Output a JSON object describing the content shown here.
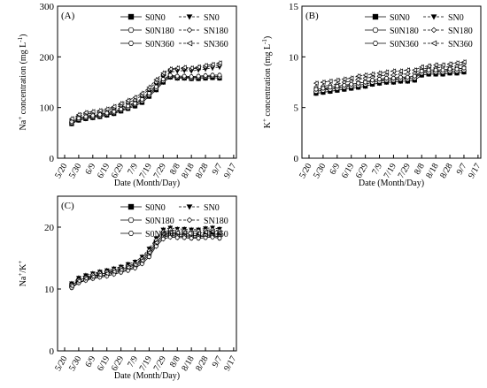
{
  "chart_data": [
    {
      "type": "line",
      "panel_label": "(A)",
      "xlabel": "Date (Month/Day)",
      "ylabel_main": "Na",
      "ylabel_sup": "+",
      "ylabel_rest": " concentration (mg L",
      "ylabel_unit_sup": "-1",
      "ylabel_end": ")",
      "categories": [
        "5/20",
        "5/30",
        "6/9",
        "6/19",
        "6/29",
        "7/9",
        "7/19",
        "7/29",
        "8/8",
        "8/18",
        "8/28",
        "9/7",
        "9/17"
      ],
      "ylim": [
        0,
        300
      ],
      "yticks": [
        "0",
        "100",
        "200",
        "300"
      ],
      "grid": false,
      "legend_position": "top-right",
      "x": [
        5,
        10,
        15,
        20,
        25,
        30,
        35,
        40,
        45,
        50,
        55,
        60,
        65,
        70,
        75,
        80,
        85,
        90,
        95,
        100,
        105,
        110
      ],
      "series": [
        {
          "name": "S0N0",
          "style": "solid",
          "marker": "square-filled",
          "values": [
            68,
            75,
            78,
            80,
            82,
            85,
            88,
            93,
            98,
            103,
            110,
            122,
            135,
            150,
            160,
            158,
            158,
            157,
            157,
            158,
            159,
            158
          ]
        },
        {
          "name": "SN0",
          "style": "dashed",
          "marker": "tri-down-filled",
          "values": [
            72,
            80,
            84,
            86,
            88,
            90,
            95,
            100,
            105,
            110,
            118,
            130,
            145,
            160,
            170,
            172,
            173,
            172,
            174,
            176,
            178,
            180
          ]
        },
        {
          "name": "S0N180",
          "style": "solid",
          "marker": "circle-open",
          "values": [
            70,
            77,
            80,
            82,
            84,
            87,
            90,
            95,
            100,
            106,
            113,
            125,
            138,
            153,
            162,
            160,
            160,
            159,
            160,
            161,
            162,
            161
          ]
        },
        {
          "name": "SN180",
          "style": "dashed",
          "marker": "diamond-open",
          "values": [
            75,
            83,
            87,
            89,
            91,
            94,
            99,
            104,
            110,
            115,
            124,
            136,
            150,
            165,
            174,
            176,
            177,
            176,
            178,
            180,
            182,
            184
          ]
        },
        {
          "name": "S0N360",
          "style": "solid",
          "marker": "hexagon-open",
          "values": [
            72,
            79,
            82,
            84,
            86,
            89,
            92,
            97,
            103,
            108,
            116,
            128,
            141,
            156,
            164,
            162,
            162,
            161,
            162,
            163,
            164,
            164
          ]
        },
        {
          "name": "SN360",
          "style": "dashed",
          "marker": "tri-left-open",
          "values": [
            78,
            86,
            90,
            92,
            94,
            97,
            102,
            108,
            114,
            120,
            128,
            140,
            155,
            168,
            176,
            178,
            179,
            178,
            180,
            183,
            185,
            188
          ]
        }
      ]
    },
    {
      "type": "line",
      "panel_label": "(B)",
      "xlabel": "Date (Month/Day)",
      "ylabel_main": "K",
      "ylabel_sup": "+",
      "ylabel_rest": " concentration (mg L",
      "ylabel_unit_sup": "-1",
      "ylabel_end": ")",
      "categories": [
        "5/20",
        "5/30",
        "6/9",
        "6/19",
        "6/29",
        "7/9",
        "7/19",
        "7/29",
        "8/8",
        "8/18",
        "8/28",
        "9/7",
        "9/17"
      ],
      "ylim": [
        0,
        15
      ],
      "yticks": [
        "0",
        "5",
        "10",
        "15"
      ],
      "grid": false,
      "legend_position": "top-right",
      "x": [
        5,
        10,
        15,
        20,
        25,
        30,
        35,
        40,
        45,
        50,
        55,
        60,
        65,
        70,
        75,
        80,
        85,
        90,
        95,
        100,
        105,
        110
      ],
      "series": [
        {
          "name": "S0N0",
          "style": "solid",
          "marker": "square-filled",
          "values": [
            6.4,
            6.5,
            6.6,
            6.7,
            6.8,
            6.9,
            7.0,
            7.1,
            7.3,
            7.4,
            7.5,
            7.5,
            7.6,
            7.6,
            7.7,
            8.2,
            8.3,
            8.3,
            8.3,
            8.4,
            8.4,
            8.5
          ]
        },
        {
          "name": "SN0",
          "style": "dashed",
          "marker": "tri-down-filled",
          "values": [
            6.7,
            6.8,
            6.9,
            7.0,
            7.1,
            7.2,
            7.4,
            7.5,
            7.6,
            7.7,
            7.8,
            7.8,
            7.9,
            7.9,
            8.0,
            8.5,
            8.6,
            8.6,
            8.6,
            8.7,
            8.8,
            8.9
          ]
        },
        {
          "name": "S0N180",
          "style": "solid",
          "marker": "circle-open",
          "values": [
            6.6,
            6.7,
            6.8,
            6.9,
            7.0,
            7.1,
            7.2,
            7.3,
            7.5,
            7.6,
            7.7,
            7.7,
            7.8,
            7.8,
            7.9,
            8.4,
            8.5,
            8.5,
            8.5,
            8.6,
            8.6,
            8.7
          ]
        },
        {
          "name": "SN180",
          "style": "dashed",
          "marker": "diamond-open",
          "values": [
            7.0,
            7.1,
            7.2,
            7.3,
            7.5,
            7.6,
            7.8,
            7.9,
            8.0,
            8.1,
            8.2,
            8.2,
            8.3,
            8.3,
            8.4,
            8.8,
            8.9,
            8.9,
            9.0,
            9.0,
            9.1,
            9.3
          ]
        },
        {
          "name": "S0N360",
          "style": "solid",
          "marker": "hexagon-open",
          "values": [
            6.8,
            6.9,
            7.0,
            7.1,
            7.2,
            7.3,
            7.4,
            7.5,
            7.7,
            7.8,
            7.9,
            7.9,
            8.0,
            8.0,
            8.1,
            8.6,
            8.7,
            8.7,
            8.7,
            8.8,
            8.8,
            8.9
          ]
        },
        {
          "name": "SN360",
          "style": "dashed",
          "marker": "tri-left-open",
          "values": [
            7.4,
            7.5,
            7.6,
            7.7,
            7.8,
            7.9,
            8.1,
            8.2,
            8.3,
            8.4,
            8.5,
            8.6,
            8.6,
            8.7,
            8.7,
            9.0,
            9.1,
            9.2,
            9.2,
            9.3,
            9.4,
            9.5
          ]
        }
      ]
    },
    {
      "type": "line",
      "panel_label": "(C)",
      "xlabel": "Date (Month/Day)",
      "ylabel_main": "Na",
      "ylabel_sup": "+",
      "ylabel_rest": "/K",
      "ylabel_unit_sup": "+",
      "ylabel_end": "",
      "categories": [
        "5/20",
        "5/30",
        "6/9",
        "6/19",
        "6/29",
        "7/9",
        "7/19",
        "7/29",
        "8/8",
        "8/18",
        "8/28",
        "9/7",
        "9/17"
      ],
      "ylim": [
        0,
        25
      ],
      "yticks": [
        "0",
        "10",
        "20"
      ],
      "grid": false,
      "legend_position": "top-right",
      "x": [
        5,
        10,
        15,
        20,
        25,
        30,
        35,
        40,
        45,
        50,
        55,
        60,
        65,
        70,
        75,
        80,
        85,
        90,
        95,
        100,
        105,
        110
      ],
      "series": [
        {
          "name": "S0N0",
          "style": "solid",
          "marker": "square-filled",
          "values": [
            10.6,
            11.4,
            11.8,
            12.1,
            12.4,
            12.6,
            12.9,
            13.2,
            13.5,
            13.9,
            14.7,
            15.8,
            17.6,
            18.7,
            19.0,
            18.8,
            18.7,
            18.7,
            18.6,
            18.8,
            18.9,
            18.8
          ]
        },
        {
          "name": "SN0",
          "style": "dashed",
          "marker": "tri-down-filled",
          "values": [
            10.9,
            11.8,
            12.2,
            12.5,
            12.8,
            13.0,
            13.3,
            13.6,
            14.0,
            14.4,
            15.2,
            16.5,
            18.2,
            19.6,
            19.9,
            19.7,
            19.7,
            19.6,
            19.6,
            19.8,
            19.9,
            19.7
          ]
        },
        {
          "name": "S0N180",
          "style": "solid",
          "marker": "circle-open",
          "values": [
            10.3,
            11.1,
            11.5,
            11.9,
            12.1,
            12.3,
            12.6,
            12.9,
            13.2,
            13.6,
            14.4,
            15.5,
            17.2,
            18.4,
            18.7,
            18.5,
            18.5,
            18.4,
            18.4,
            18.6,
            18.6,
            18.5
          ]
        },
        {
          "name": "SN180",
          "style": "dashed",
          "marker": "diamond-open",
          "values": [
            10.7,
            11.5,
            11.9,
            12.3,
            12.6,
            12.8,
            13.1,
            13.4,
            13.7,
            14.1,
            14.9,
            16.2,
            17.9,
            19.3,
            19.6,
            19.4,
            19.4,
            19.3,
            19.4,
            19.5,
            19.6,
            19.4
          ]
        },
        {
          "name": "S0N360",
          "style": "solid",
          "marker": "hexagon-open",
          "values": [
            10.2,
            11.0,
            11.4,
            11.7,
            11.9,
            12.1,
            12.4,
            12.7,
            13.0,
            13.4,
            14.1,
            15.2,
            16.9,
            18.1,
            18.4,
            18.3,
            18.3,
            18.2,
            18.2,
            18.3,
            18.4,
            18.2
          ]
        },
        {
          "name": "SN360",
          "style": "dashed",
          "marker": "tri-left-open",
          "values": [
            10.5,
            11.3,
            11.7,
            12.0,
            12.3,
            12.5,
            12.8,
            13.1,
            13.5,
            13.9,
            14.6,
            15.9,
            17.5,
            18.9,
            19.2,
            19.1,
            19.1,
            19.0,
            19.0,
            19.2,
            19.3,
            19.1
          ]
        }
      ]
    }
  ]
}
